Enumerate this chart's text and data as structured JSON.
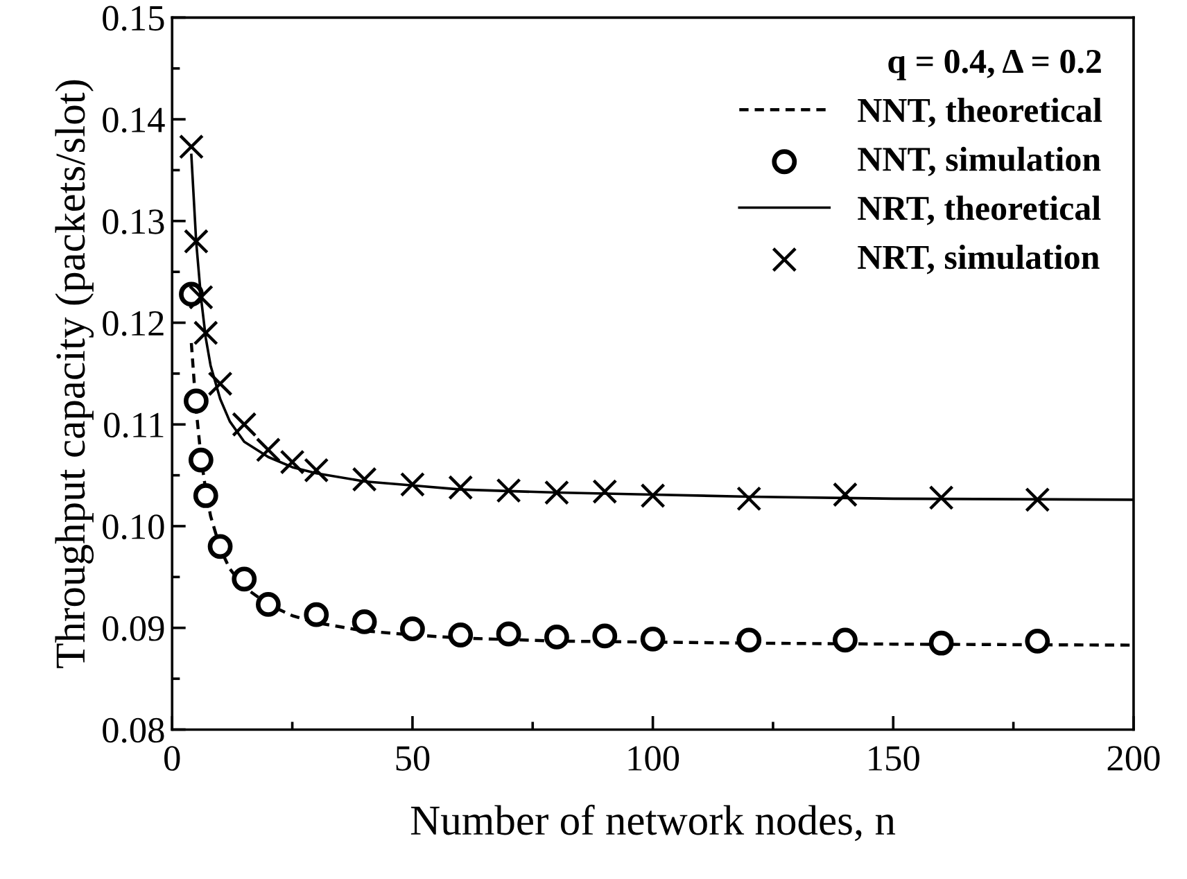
{
  "chart_data": {
    "type": "line",
    "xlabel": "Number of network nodes, n",
    "ylabel": "Throughput capacity (packets/slot)",
    "legend_title": "q = 0.4, Δ = 0.2",
    "legend": "top right",
    "grid": false,
    "xlim": [
      0,
      200
    ],
    "xticks": [
      0,
      50,
      100,
      150,
      200
    ],
    "ylim": [
      0.08,
      0.15
    ],
    "yticks": [
      {
        "value": 0.08,
        "label": "0.08"
      },
      {
        "value": 0.09,
        "label": "0.09"
      },
      {
        "value": 0.1,
        "label": "0.10"
      },
      {
        "value": 0.11,
        "label": "0.11"
      },
      {
        "value": 0.12,
        "label": "0.12"
      },
      {
        "value": 0.13,
        "label": "0.13"
      },
      {
        "value": 0.14,
        "label": "0.14"
      },
      {
        "value": 0.15,
        "label": "0.15"
      }
    ],
    "series": [
      {
        "name": "NNT, theoretical",
        "line_style": "dashed",
        "marker": "none",
        "color": "#000000",
        "x": [
          4,
          5,
          6,
          7,
          8,
          10,
          12,
          15,
          20,
          25,
          30,
          40,
          50,
          60,
          80,
          100,
          120,
          150,
          200
        ],
        "values": [
          0.118,
          0.1115,
          0.1068,
          0.1035,
          0.101,
          0.0978,
          0.0958,
          0.094,
          0.0923,
          0.0912,
          0.0905,
          0.0897,
          0.0893,
          0.089,
          0.0887,
          0.0886,
          0.0885,
          0.0884,
          0.0883
        ]
      },
      {
        "name": "NNT, simulation",
        "type": "scatter",
        "marker": "circle",
        "color": "#000000",
        "x": [
          4,
          5,
          6,
          7,
          10,
          15,
          20,
          30,
          40,
          50,
          60,
          70,
          80,
          90,
          100,
          120,
          140,
          160,
          180
        ],
        "values": [
          0.1228,
          0.1123,
          0.1065,
          0.103,
          0.098,
          0.0948,
          0.0923,
          0.0913,
          0.0906,
          0.0899,
          0.0893,
          0.0894,
          0.0891,
          0.0892,
          0.0889,
          0.0888,
          0.0888,
          0.0885,
          0.0887
        ]
      },
      {
        "name": "NRT, theoretical",
        "line_style": "solid",
        "marker": "none",
        "color": "#000000",
        "x": [
          4,
          5,
          6,
          7,
          8,
          10,
          12,
          15,
          20,
          25,
          30,
          40,
          50,
          60,
          80,
          100,
          120,
          150,
          200
        ],
        "values": [
          0.1365,
          0.128,
          0.1225,
          0.1185,
          0.1158,
          0.1125,
          0.1103,
          0.1083,
          0.1068,
          0.1058,
          0.1052,
          0.1044,
          0.104,
          0.1036,
          0.1033,
          0.1031,
          0.1029,
          0.1027,
          0.1026
        ]
      },
      {
        "name": "NRT, simulation",
        "type": "scatter",
        "marker": "cross",
        "color": "#000000",
        "x": [
          4,
          5,
          6,
          7,
          10,
          15,
          20,
          25,
          30,
          40,
          50,
          60,
          70,
          80,
          90,
          100,
          120,
          140,
          160,
          180
        ],
        "values": [
          0.1373,
          0.128,
          0.1225,
          0.119,
          0.114,
          0.11,
          0.1075,
          0.1063,
          0.1055,
          0.1046,
          0.1041,
          0.1038,
          0.1035,
          0.1033,
          0.1034,
          0.103,
          0.1027,
          0.1031,
          0.1028,
          0.1026
        ]
      }
    ]
  }
}
